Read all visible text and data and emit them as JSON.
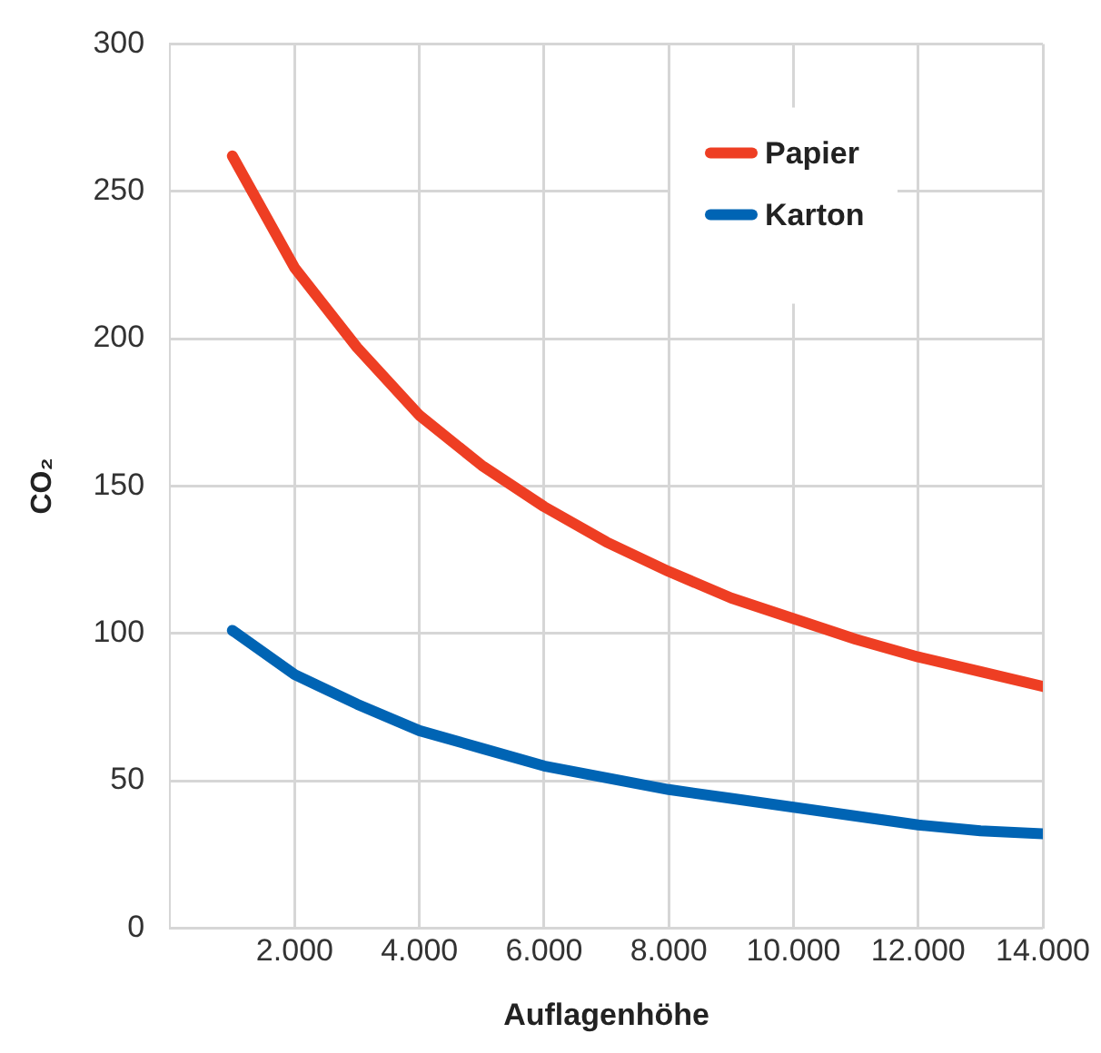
{
  "chart_data": {
    "type": "line",
    "xlabel": "Auflagenhöhe",
    "ylabel": "CO₂",
    "x": [
      1000,
      2000,
      3000,
      4000,
      5000,
      6000,
      7000,
      8000,
      9000,
      10000,
      11000,
      12000,
      13000,
      14000
    ],
    "series": [
      {
        "name": "Papier",
        "color": "#ee3e23",
        "values": [
          262,
          224,
          197,
          174,
          157,
          143,
          131,
          121,
          112,
          105,
          98,
          92,
          87,
          82
        ]
      },
      {
        "name": "Karton",
        "color": "#0064b4",
        "values": [
          101,
          86,
          76,
          67,
          61,
          55,
          51,
          47,
          44,
          41,
          38,
          35,
          33,
          32
        ]
      }
    ],
    "xlim": [
      0,
      14000
    ],
    "xticks": [
      {
        "value": 2000,
        "label": "2.000"
      },
      {
        "value": 4000,
        "label": "4.000"
      },
      {
        "value": 6000,
        "label": "6.000"
      },
      {
        "value": 8000,
        "label": "8.000"
      },
      {
        "value": 10000,
        "label": "10.000"
      },
      {
        "value": 12000,
        "label": "12.000"
      },
      {
        "value": 14000,
        "label": "14.000"
      }
    ],
    "ylim": [
      0,
      300
    ],
    "yticks": [
      0,
      50,
      100,
      150,
      200,
      250,
      300
    ],
    "grid": true,
    "legend": "top right",
    "marker": "none",
    "line_style": "solid"
  }
}
